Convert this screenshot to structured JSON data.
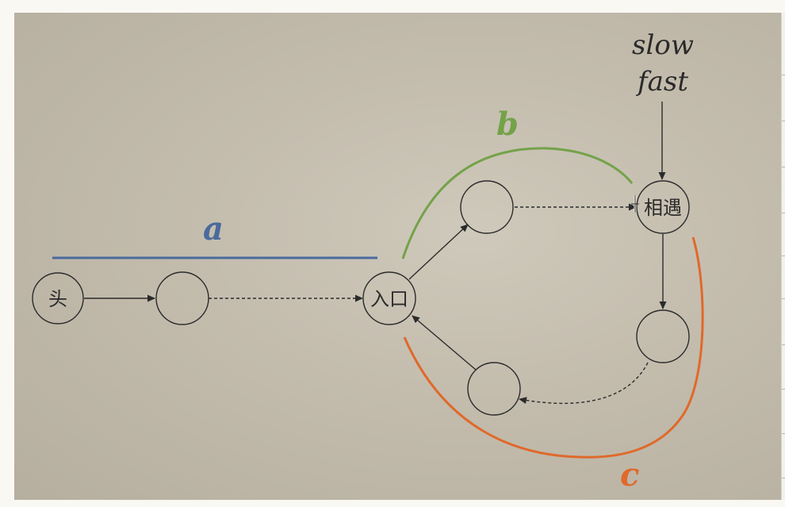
{
  "nodes": {
    "head": "头",
    "entry": "入口",
    "meet": "相遇"
  },
  "segments": {
    "a": {
      "label": "a",
      "color": "#4a6a9c"
    },
    "b": {
      "label": "b",
      "color": "#74a24a"
    },
    "c": {
      "label": "c",
      "color": "#e0692a"
    }
  },
  "pointers": {
    "slow": "slow",
    "fast": "fast"
  },
  "colors": {
    "stroke": "#2b2b2b",
    "background": "#c3bcad"
  }
}
